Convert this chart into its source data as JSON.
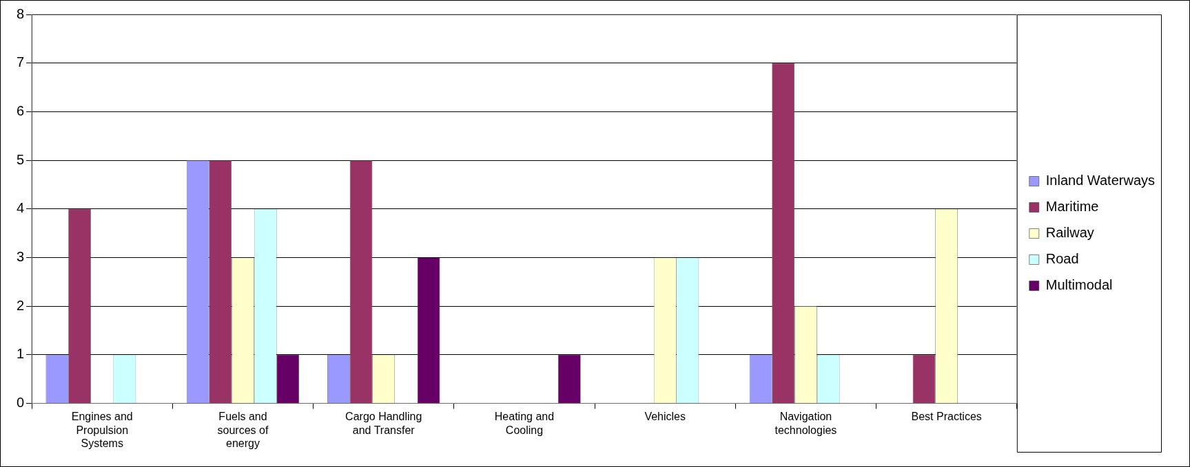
{
  "chart_data": {
    "type": "bar",
    "categories": [
      "Engines and Propulsion Systems",
      "Fuels and sources of energy",
      "Cargo Handling and Transfer",
      "Heating and Cooling",
      "Vehicles",
      "Navigation technologies",
      "Best Practices"
    ],
    "series": [
      {
        "name": "Inland Waterways",
        "color": "#9999ff",
        "values": [
          1,
          5,
          1,
          0,
          0,
          1,
          0
        ]
      },
      {
        "name": "Maritime",
        "color": "#993366",
        "values": [
          4,
          5,
          5,
          0,
          0,
          7,
          1
        ]
      },
      {
        "name": "Railway",
        "color": "#ffffcc",
        "values": [
          0,
          3,
          1,
          0,
          3,
          2,
          4
        ]
      },
      {
        "name": "Road",
        "color": "#ccffff",
        "values": [
          1,
          4,
          0,
          0,
          3,
          1,
          0
        ]
      },
      {
        "name": "Multimodal",
        "color": "#660066",
        "values": [
          0,
          1,
          3,
          1,
          0,
          0,
          0
        ]
      }
    ],
    "ylim": [
      0,
      8
    ],
    "yticks": [
      0,
      1,
      2,
      3,
      4,
      5,
      6,
      7,
      8
    ],
    "grid": "y",
    "legend": "right"
  }
}
